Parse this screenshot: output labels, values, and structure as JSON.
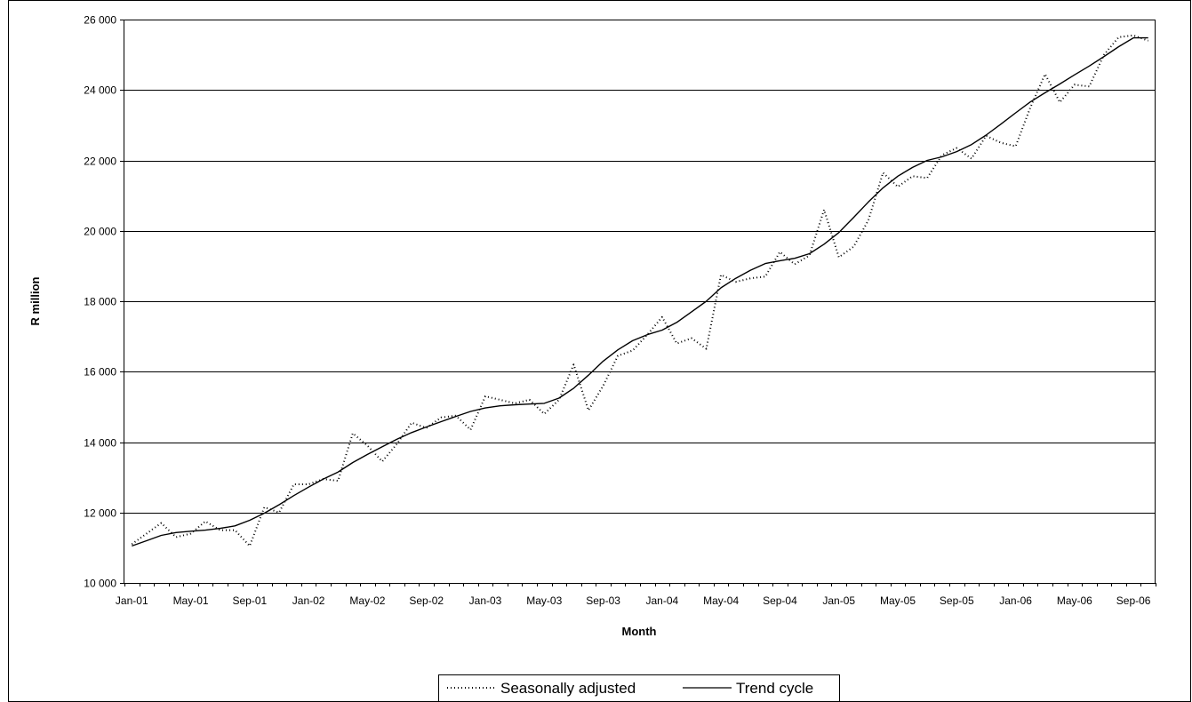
{
  "chart_data": {
    "type": "line",
    "xlabel": "Month",
    "ylabel": "R million",
    "ylim": [
      10000,
      26000
    ],
    "yticks": [
      10000,
      12000,
      14000,
      16000,
      18000,
      20000,
      22000,
      24000,
      26000
    ],
    "ytick_labels": [
      "10 000",
      "12 000",
      "14 000",
      "16 000",
      "18 000",
      "20 000",
      "22 000",
      "24 000",
      "26 000"
    ],
    "xtick_labels": [
      "Jan-01",
      "May-01",
      "Sep-01",
      "Jan-02",
      "May-02",
      "Sep-02",
      "Jan-03",
      "May-03",
      "Sep-03",
      "Jan-04",
      "May-04",
      "Sep-04",
      "Jan-05",
      "May-05",
      "Sep-05",
      "Jan-06",
      "May-06",
      "Sep-06"
    ],
    "x_start": "Jan-01",
    "x_end": "Oct-06",
    "grid": "horizontal",
    "legend_position": "bottom-center",
    "series": [
      {
        "name": "Seasonally adjusted",
        "style": "dotted",
        "values": [
          11100,
          11400,
          11700,
          11300,
          11400,
          11750,
          11500,
          11500,
          11050,
          12150,
          12000,
          12800,
          12800,
          12950,
          12900,
          14250,
          13900,
          13450,
          13950,
          14550,
          14400,
          14700,
          14750,
          14350,
          15300,
          15200,
          15100,
          15200,
          14800,
          15200,
          16200,
          14900,
          15600,
          16450,
          16600,
          17050,
          17550,
          16800,
          16950,
          16650,
          18750,
          18550,
          18650,
          18700,
          19400,
          19050,
          19300,
          20600,
          19250,
          19550,
          20300,
          21650,
          21250,
          21550,
          21500,
          22150,
          22350,
          22050,
          22700,
          22500,
          22400,
          23500,
          24450,
          23650,
          24150,
          24100,
          25000,
          25500,
          25550,
          25400
        ]
      },
      {
        "name": "Trend cycle",
        "style": "solid",
        "values": [
          11050,
          11200,
          11350,
          11430,
          11470,
          11500,
          11550,
          11620,
          11780,
          11980,
          12220,
          12480,
          12720,
          12950,
          13150,
          13420,
          13650,
          13870,
          14080,
          14270,
          14430,
          14580,
          14730,
          14870,
          14970,
          15030,
          15060,
          15080,
          15100,
          15250,
          15530,
          15900,
          16300,
          16620,
          16880,
          17050,
          17180,
          17400,
          17700,
          18000,
          18380,
          18650,
          18880,
          19070,
          19150,
          19220,
          19350,
          19620,
          19950,
          20380,
          20820,
          21220,
          21550,
          21800,
          22000,
          22100,
          22250,
          22450,
          22720,
          23030,
          23350,
          23660,
          23920,
          24170,
          24430,
          24680,
          24950,
          25230,
          25480,
          25480
        ]
      }
    ]
  }
}
